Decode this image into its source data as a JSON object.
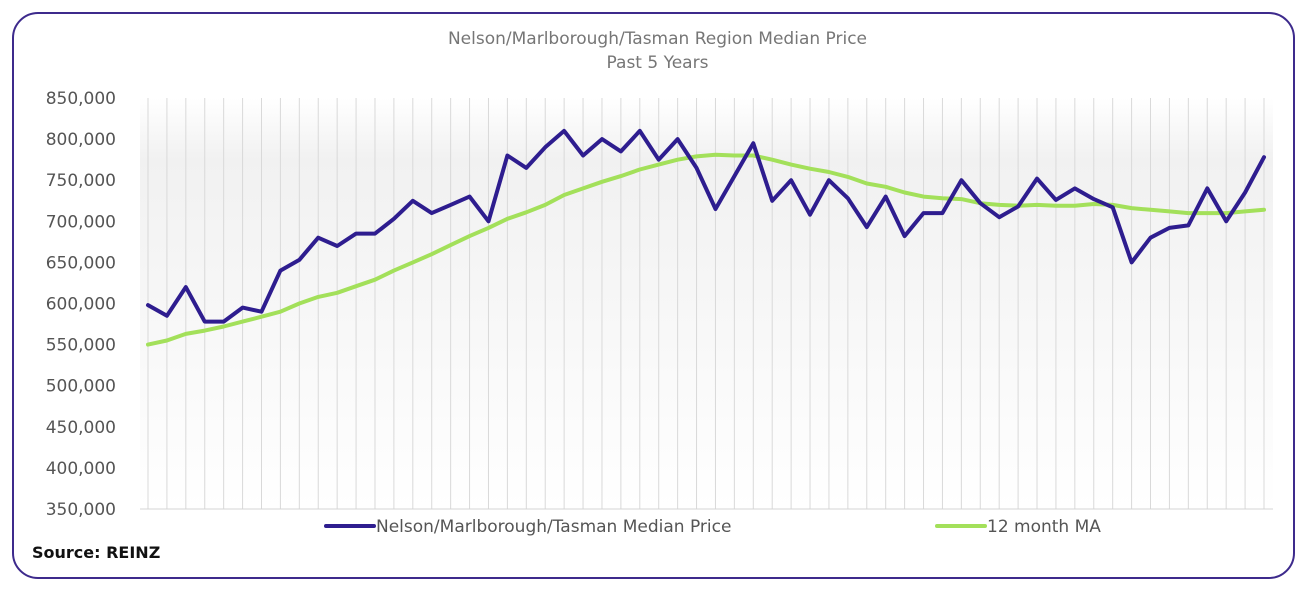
{
  "chart_data": {
    "type": "line",
    "title": "Nelson/Marlborough/Tasman  Region Median Price",
    "subtitle": "Past 5 Years",
    "xlabel": "",
    "ylabel": "",
    "ylim": [
      350000,
      850000
    ],
    "yticks": [
      "850,000",
      "800,000",
      "750,000",
      "700,000",
      "650,000",
      "600,000",
      "550,000",
      "500,000",
      "450,000",
      "400,000",
      "350,000"
    ],
    "grid": "vertical",
    "legend_position": "bottom",
    "series": [
      {
        "name": "Nelson/Marlborough/Tasman Median Price",
        "color": "#2e1d8f",
        "values": [
          598000,
          585000,
          620000,
          578000,
          578000,
          595000,
          590000,
          640000,
          653000,
          680000,
          670000,
          685000,
          685000,
          703000,
          725000,
          710000,
          720000,
          730000,
          700000,
          780000,
          765000,
          790000,
          810000,
          780000,
          800000,
          785000,
          810000,
          775000,
          800000,
          765000,
          715000,
          755000,
          795000,
          725000,
          750000,
          708000,
          750000,
          728000,
          693000,
          730000,
          682000,
          710000,
          710000,
          750000,
          722000,
          705000,
          718000,
          752000,
          726000,
          740000,
          727000,
          717000,
          650000,
          680000,
          692000,
          695000,
          740000,
          700000,
          735000,
          778000
        ]
      },
      {
        "name": "12 month MA",
        "color": "#a3e05a",
        "values": [
          550000,
          555000,
          563000,
          567000,
          572000,
          578000,
          584000,
          590000,
          600000,
          608000,
          613000,
          621000,
          629000,
          640000,
          650000,
          660000,
          671000,
          682000,
          692000,
          703000,
          711000,
          720000,
          732000,
          740000,
          748000,
          755000,
          763000,
          769000,
          775000,
          779000,
          781000,
          780000,
          780000,
          775000,
          769000,
          764000,
          760000,
          754000,
          746000,
          742000,
          735000,
          730000,
          728000,
          727000,
          722000,
          720000,
          719000,
          720000,
          719000,
          719000,
          721000,
          720000,
          716000,
          714000,
          712000,
          710000,
          710000,
          710000,
          712000,
          714000
        ]
      }
    ]
  },
  "footer": {
    "source": "Source: REINZ"
  }
}
